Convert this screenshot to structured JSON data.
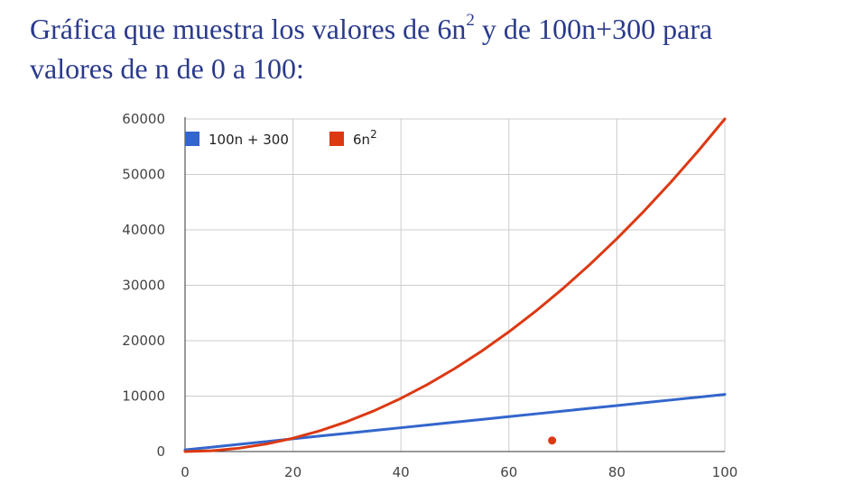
{
  "caption": {
    "line1_prefix": "Gráfica que muestra los valores de 6n",
    "line1_sup": "2",
    "line1_suffix": " y de 100n+300 para",
    "line2": "valores de n de 0 a 100:"
  },
  "chart_data": {
    "type": "line",
    "title": "",
    "xlabel": "",
    "ylabel": "",
    "xlim": [
      0,
      100
    ],
    "ylim": [
      0,
      60000
    ],
    "x_ticks": [
      0,
      20,
      40,
      60,
      80,
      100
    ],
    "y_ticks": [
      0,
      10000,
      20000,
      30000,
      40000,
      50000,
      60000
    ],
    "grid": true,
    "legend_position": "top-left",
    "x": [
      0,
      5,
      10,
      15,
      20,
      25,
      30,
      35,
      40,
      45,
      50,
      55,
      60,
      65,
      70,
      75,
      80,
      85,
      90,
      95,
      100
    ],
    "series": [
      {
        "name": "100n + 300",
        "legend_text": "100n + 300",
        "color": "#3366cc",
        "values": [
          300,
          800,
          1300,
          1800,
          2300,
          2800,
          3300,
          3800,
          4300,
          4800,
          5300,
          5800,
          6300,
          6800,
          7300,
          7800,
          8300,
          8800,
          9300,
          9800,
          10300
        ]
      },
      {
        "name": "6n²",
        "legend_base": "6n",
        "legend_sup": "2",
        "color": "#dc3912",
        "values": [
          0,
          150,
          600,
          1350,
          2400,
          3750,
          5400,
          7350,
          9600,
          12150,
          15000,
          18150,
          21600,
          25350,
          29400,
          33750,
          38400,
          43350,
          48600,
          54150,
          60000
        ]
      }
    ],
    "extra_points": [
      {
        "x": 68,
        "y": 2000,
        "color": "#dc3912"
      }
    ]
  }
}
